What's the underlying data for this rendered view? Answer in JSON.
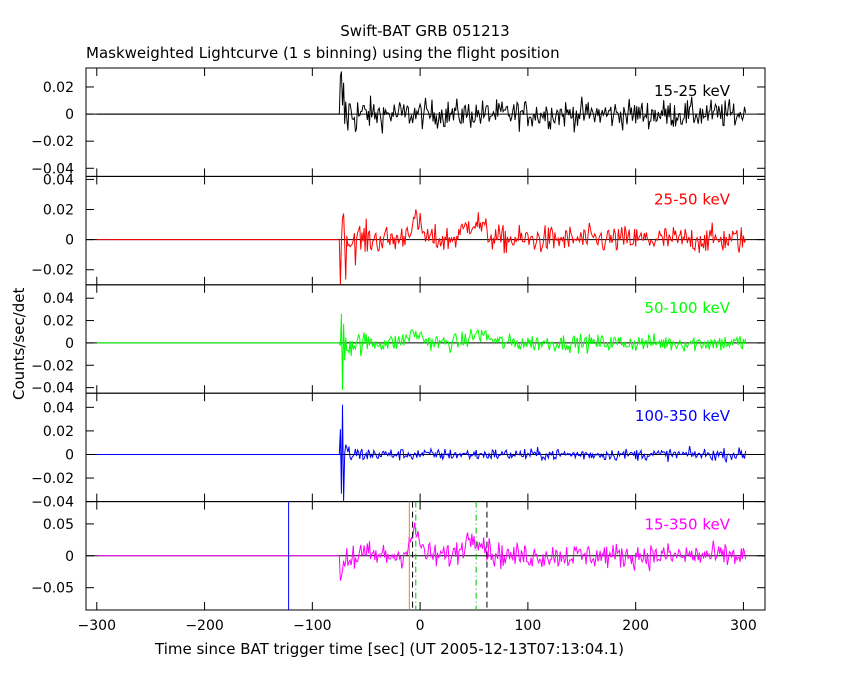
{
  "chart_data": {
    "type": "line",
    "title": "Swift-BAT GRB 051213",
    "subtitle": "Maskweighted Lightcurve (1 s binning) using the flight position",
    "xlabel": "Time since BAT trigger time [sec] (UT 2005-12-13T07:13:04.1)",
    "ylabel": "Counts/sec/det",
    "xlim": [
      -310,
      320
    ],
    "x_ticks": [
      -300,
      -200,
      -100,
      0,
      100,
      200,
      300
    ],
    "data_start": -300,
    "data_end": 302,
    "burst_start": -74,
    "panels": [
      {
        "band": "15-25 keV",
        "color": "#000000",
        "ylim": [
          -0.046,
          0.034
        ],
        "ticks": [
          0.02,
          0,
          -0.02,
          -0.04
        ],
        "tick_labels": [
          "0.02",
          "0",
          "−0.02",
          "−0.04"
        ],
        "noise": 0.0075,
        "spike": 0.03
      },
      {
        "band": "25-50 keV",
        "color": "#ff0000",
        "ylim": [
          -0.03,
          0.042
        ],
        "ticks": [
          0.04,
          0.02,
          0,
          -0.02
        ],
        "tick_labels": [
          "0.04",
          "0.02",
          "0",
          "−0.02"
        ],
        "noise": 0.0065,
        "spike": 0.03,
        "bumps": [
          {
            "center": -5,
            "width": 8,
            "amp": 0.012
          },
          {
            "center": 50,
            "width": 12,
            "amp": 0.012
          }
        ]
      },
      {
        "band": "50-100 keV",
        "color": "#00ff00",
        "ylim": [
          -0.045,
          0.052
        ],
        "ticks": [
          0.04,
          0.02,
          0,
          -0.02,
          -0.04
        ],
        "tick_labels": [
          "0.04",
          "0.02",
          "0",
          "−0.02",
          "−0.04"
        ],
        "noise": 0.0055,
        "spike": 0.045,
        "bumps": [
          {
            "center": -5,
            "width": 10,
            "amp": 0.008
          },
          {
            "center": 55,
            "width": 12,
            "amp": 0.008
          }
        ]
      },
      {
        "band": "100-350 keV",
        "color": "#0000ff",
        "ylim": [
          -0.04,
          0.052
        ],
        "ticks": [
          0.04,
          0.02,
          0,
          -0.02,
          -0.04
        ],
        "tick_labels": [
          "0.04",
          "0.02",
          "0",
          "−0.02",
          "−0.04"
        ],
        "noise": 0.0035,
        "spike": 0.05
      },
      {
        "band": "15-350 keV",
        "color": "#ff00ff",
        "ylim": [
          -0.085,
          0.085
        ],
        "ticks": [
          0.05,
          0,
          -0.05
        ],
        "tick_labels": [
          "0.05",
          "0",
          "−0.05"
        ],
        "noise": 0.014,
        "spike": 0.06,
        "bumps": [
          {
            "center": -5,
            "width": 7,
            "amp": 0.035
          },
          {
            "center": 50,
            "width": 12,
            "amp": 0.032
          }
        ],
        "markers": [
          {
            "x": -122,
            "color": "#0000ff",
            "style": "solid"
          },
          {
            "x": -10,
            "color": "#ff8000",
            "style": "solid"
          },
          {
            "x": -7,
            "color": "#000000",
            "style": "dashed"
          },
          {
            "x": -4,
            "color": "#00c000",
            "style": "dashdot"
          },
          {
            "x": 52,
            "color": "#00c000",
            "style": "dashdot"
          },
          {
            "x": 62,
            "color": "#000000",
            "style": "dashed"
          }
        ]
      }
    ]
  }
}
